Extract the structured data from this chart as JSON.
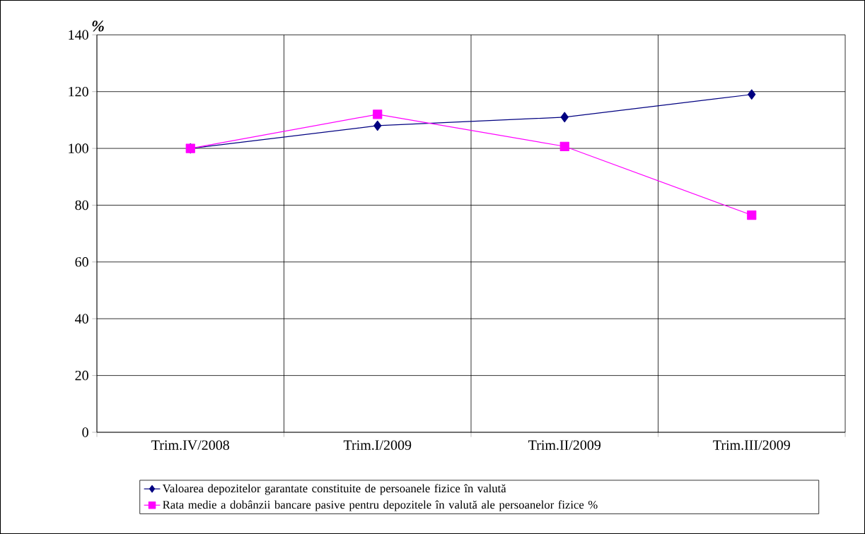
{
  "chart_data": {
    "type": "line",
    "ylabel": "%",
    "categories": [
      "Trim.IV/2008",
      "Trim.I/2009",
      "Trim.II/2009",
      "Trim.III/2009"
    ],
    "series": [
      {
        "name": "Valoarea depozitelor garantate constituite de persoanele fizice în valută",
        "color": "#000080",
        "marker": "diamond",
        "values": [
          100,
          108,
          111,
          119
        ]
      },
      {
        "name": "Rata medie a dobânzii bancare pasive pentru depozitele în valută ale persoanelor fizice %",
        "color": "#ff00ff",
        "marker": "square",
        "values": [
          100,
          112,
          100.7,
          76.5
        ]
      }
    ],
    "ylim": [
      0,
      140
    ],
    "yticks": [
      0,
      20,
      40,
      60,
      80,
      100,
      120,
      140
    ],
    "grid": true,
    "legend": "bottom"
  }
}
